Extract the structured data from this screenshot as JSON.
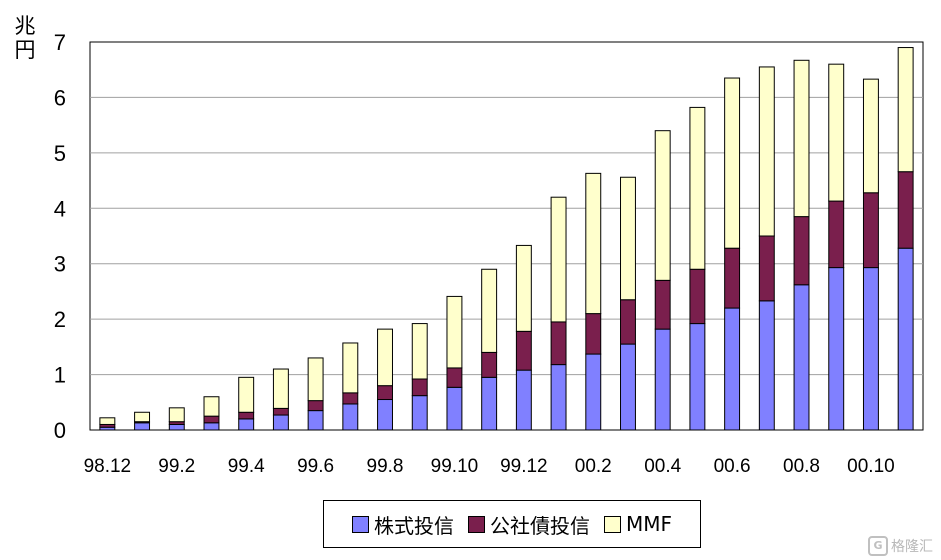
{
  "unit_label": "兆円",
  "watermark": "格隆汇",
  "colors": {
    "stock": "#8080ff",
    "bond": "#7a1f4d",
    "mmf": "#ffffcc",
    "grid": "#a0a0a0",
    "border": "#000000"
  },
  "chart_data": {
    "type": "bar",
    "stacked": true,
    "title": "",
    "xlabel": "",
    "ylabel": "兆円",
    "ylim": [
      0,
      7
    ],
    "yticks": [
      0,
      1,
      2,
      3,
      4,
      5,
      6,
      7
    ],
    "grid": true,
    "legend_position": "bottom",
    "categories": [
      "98.12",
      "99.1",
      "99.2",
      "99.3",
      "99.4",
      "99.5",
      "99.6",
      "99.7",
      "99.8",
      "99.9",
      "99.10",
      "99.11",
      "99.12",
      "00.1",
      "00.2",
      "00.3",
      "00.4",
      "00.5",
      "00.6",
      "00.7",
      "00.8",
      "00.9",
      "00.10",
      "00.11"
    ],
    "x_tick_labels": [
      "98.12",
      "",
      "99.2",
      "",
      "99.4",
      "",
      "99.6",
      "",
      "99.8",
      "",
      "99.10",
      "",
      "99.12",
      "",
      "00.2",
      "",
      "00.4",
      "",
      "00.6",
      "",
      "00.8",
      "",
      "00.10",
      ""
    ],
    "series": [
      {
        "name": "株式投信",
        "color": "#8080ff",
        "values": [
          0.05,
          0.13,
          0.1,
          0.13,
          0.2,
          0.27,
          0.35,
          0.47,
          0.55,
          0.62,
          0.77,
          0.95,
          1.08,
          1.18,
          1.37,
          1.55,
          1.82,
          1.92,
          2.2,
          2.33,
          2.62,
          2.93,
          2.93,
          3.28
        ]
      },
      {
        "name": "公社債投信",
        "color": "#7a1f4d",
        "values": [
          0.05,
          0.02,
          0.05,
          0.12,
          0.12,
          0.12,
          0.18,
          0.2,
          0.25,
          0.3,
          0.35,
          0.45,
          0.7,
          0.77,
          0.73,
          0.8,
          0.88,
          0.98,
          1.08,
          1.17,
          1.23,
          1.2,
          1.35,
          1.38
        ]
      },
      {
        "name": "MMF",
        "color": "#ffffcc",
        "values": [
          0.12,
          0.17,
          0.25,
          0.35,
          0.63,
          0.71,
          0.77,
          0.9,
          1.02,
          1.0,
          1.29,
          1.5,
          1.55,
          2.25,
          2.53,
          2.21,
          2.7,
          2.92,
          3.07,
          3.05,
          2.82,
          2.47,
          2.05,
          2.24
        ]
      }
    ]
  }
}
